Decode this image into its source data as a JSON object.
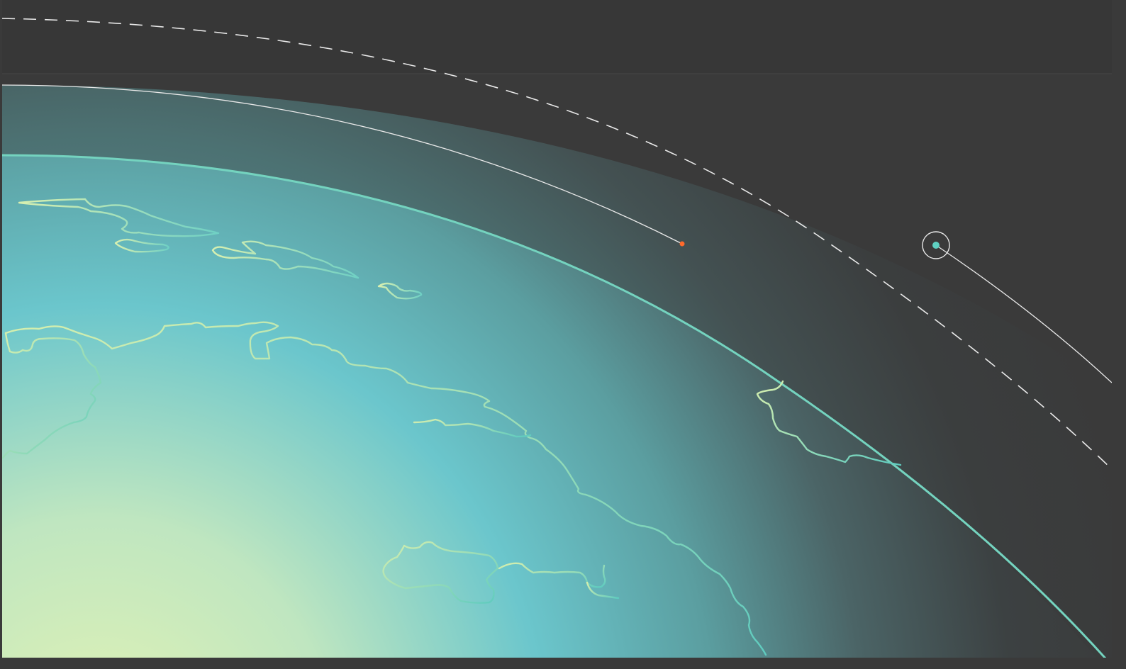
{
  "colors": {
    "background": "#3a3a3a",
    "coastline": "#c9eab2",
    "horizon": "#74d3bf",
    "orbit_line": "#e9e9e9",
    "satellite": "#5fd1c2",
    "target_marker": "#ff6a2b"
  },
  "markers": [
    {
      "name": "ground-target",
      "icon": "orange-dot"
    },
    {
      "name": "satellite",
      "icon": "ringed-teal-dot"
    }
  ]
}
